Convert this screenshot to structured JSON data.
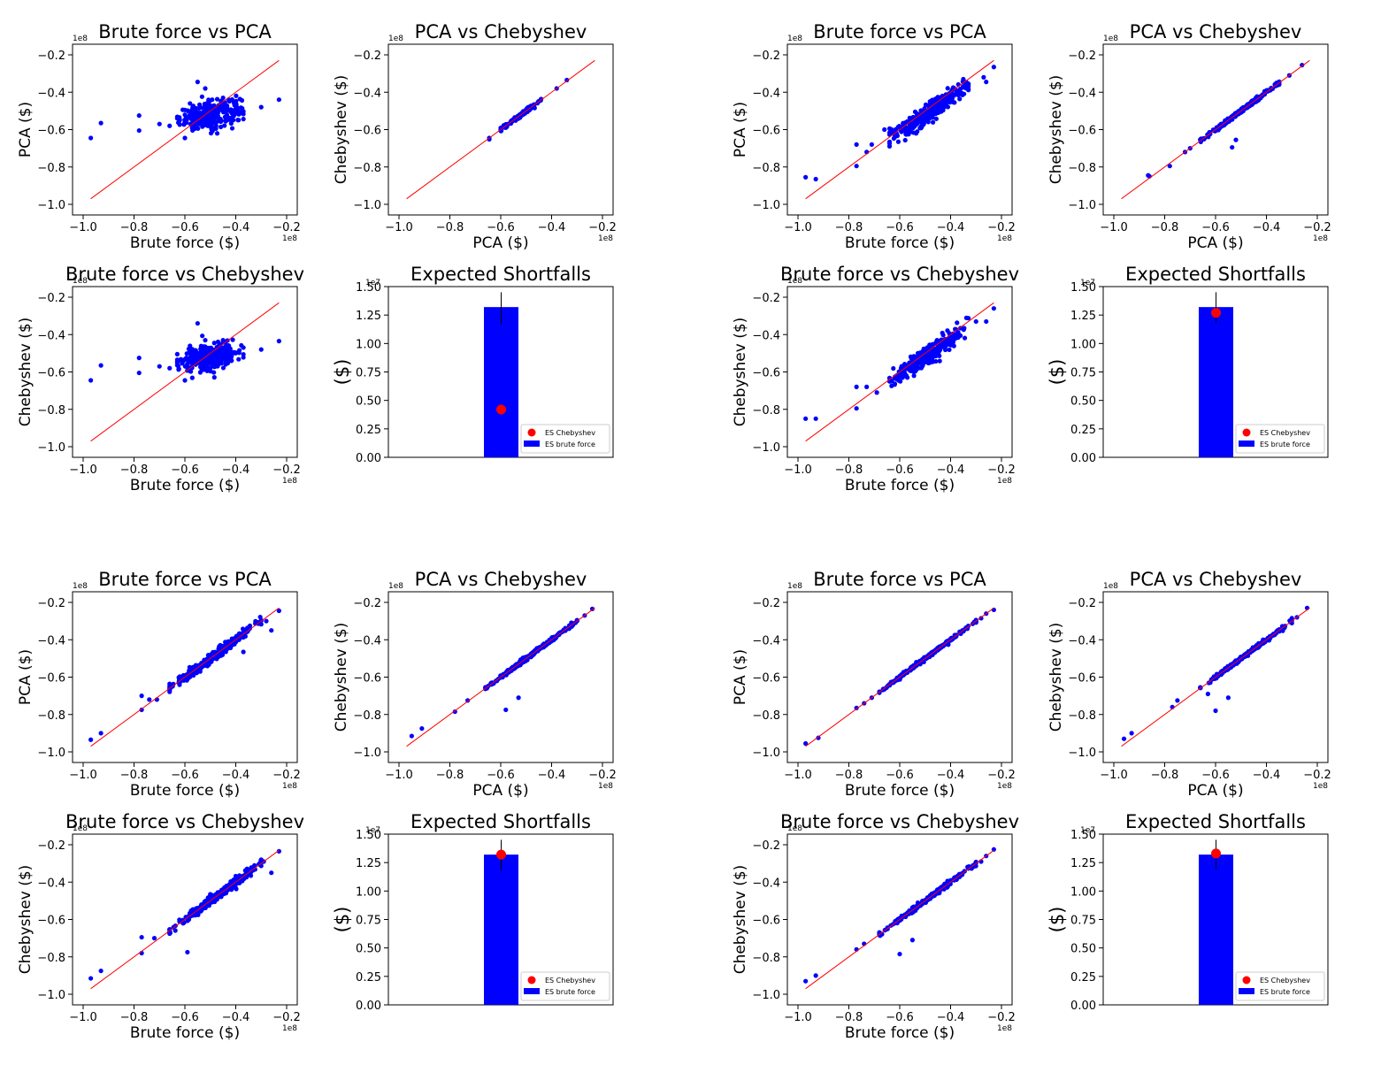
{
  "colors": {
    "point": "#0000ff",
    "line": "#ff0000",
    "bar": "#0000ff",
    "marker": "#ff0000",
    "axis": "#000000"
  },
  "chart_data": [
    {
      "id": "g1",
      "type": "scatter",
      "title": "Brute force vs PCA",
      "xlabel": "Brute force ($)",
      "ylabel": "PCA ($)",
      "xlim": [
        -1.0,
        -0.2
      ],
      "ylim": [
        -1.0,
        -0.2
      ],
      "xticks": [
        "−1.0",
        "−0.8",
        "−0.6",
        "−0.4",
        "−0.2"
      ],
      "yticks": [
        "−1.0",
        "−0.8",
        "−0.6",
        "−0.4",
        "−0.2"
      ],
      "x_offset": "1e8",
      "y_offset": "1e8",
      "diagonal": [
        [
          -0.97,
          -0.97
        ],
        [
          -0.23,
          -0.23
        ]
      ],
      "cloud": {
        "slope": 0.25,
        "spread": 0.035,
        "n": 300,
        "xmin": -0.63,
        "xmax": -0.37
      },
      "points": [
        [
          -0.97,
          -0.645
        ],
        [
          -0.93,
          -0.565
        ],
        [
          -0.78,
          -0.605
        ],
        [
          -0.78,
          -0.525
        ],
        [
          -0.6,
          -0.645
        ],
        [
          -0.55,
          -0.345
        ],
        [
          -0.58,
          -0.46
        ],
        [
          -0.52,
          -0.38
        ],
        [
          -0.45,
          -0.43
        ],
        [
          -0.23,
          -0.44
        ],
        [
          -0.3,
          -0.48
        ],
        [
          -0.7,
          -0.57
        ],
        [
          -0.66,
          -0.58
        ]
      ]
    },
    {
      "id": "g2",
      "type": "scatter",
      "title": "PCA vs Chebyshev",
      "xlabel": "PCA ($)",
      "ylabel": "Chebyshev ($)",
      "xlim": [
        -1.0,
        -0.2
      ],
      "ylim": [
        -1.0,
        -0.2
      ],
      "xticks": [
        "−1.0",
        "−0.8",
        "−0.6",
        "−0.4",
        "−0.2"
      ],
      "yticks": [
        "−1.0",
        "−0.8",
        "−0.6",
        "−0.4",
        "−0.2"
      ],
      "x_offset": "1e8",
      "y_offset": "1e8",
      "diagonal": [
        [
          -0.97,
          -0.97
        ],
        [
          -0.23,
          -0.23
        ]
      ],
      "cloud": {
        "slope": 1.0,
        "spread": 0.005,
        "n": 150,
        "xmin": -0.6,
        "xmax": -0.43
      },
      "points": [
        [
          -0.645,
          -0.645
        ],
        [
          -0.645,
          -0.652
        ],
        [
          -0.34,
          -0.335
        ],
        [
          -0.38,
          -0.38
        ],
        [
          -0.6,
          -0.6
        ]
      ]
    },
    {
      "id": "g3",
      "type": "scatter",
      "title": "Brute force vs Chebyshev",
      "xlabel": "Brute force ($)",
      "ylabel": "Chebyshev ($)",
      "xlim": [
        -1.0,
        -0.2
      ],
      "ylim": [
        -1.0,
        -0.2
      ],
      "xticks": [
        "−1.0",
        "−0.8",
        "−0.6",
        "−0.4",
        "−0.2"
      ],
      "yticks": [
        "−1.0",
        "−0.8",
        "−0.6",
        "−0.4",
        "−0.2"
      ],
      "x_offset": "1e8",
      "y_offset": "1e8",
      "diagonal": [
        [
          -0.97,
          -0.97
        ],
        [
          -0.23,
          -0.23
        ]
      ],
      "cloud": {
        "slope": 0.25,
        "spread": 0.035,
        "n": 300,
        "xmin": -0.63,
        "xmax": -0.37
      },
      "points": [
        [
          -0.97,
          -0.645
        ],
        [
          -0.93,
          -0.565
        ],
        [
          -0.78,
          -0.605
        ],
        [
          -0.78,
          -0.525
        ],
        [
          -0.6,
          -0.645
        ],
        [
          -0.55,
          -0.34
        ],
        [
          -0.58,
          -0.46
        ],
        [
          -0.52,
          -0.43
        ],
        [
          -0.45,
          -0.43
        ],
        [
          -0.23,
          -0.435
        ],
        [
          -0.3,
          -0.48
        ],
        [
          -0.7,
          -0.57
        ],
        [
          -0.66,
          -0.58
        ]
      ]
    },
    {
      "id": "g4",
      "type": "bar",
      "title": "Expected Shortfalls",
      "ylabel": "($)",
      "ylim": [
        0,
        1.5
      ],
      "y_offset": "1e7",
      "yticks": [
        "0.00",
        "0.25",
        "0.50",
        "0.75",
        "1.00",
        "1.25",
        "1.50"
      ],
      "bar_value": 1.32,
      "bar_error": [
        1.17,
        1.45
      ],
      "marker_value": 0.42,
      "legend": [
        "ES Chebyshev",
        "ES brute force"
      ]
    },
    {
      "id": "g5",
      "type": "scatter",
      "title": "Brute force vs PCA",
      "xlabel": "Brute force ($)",
      "ylabel": "PCA ($)",
      "xlim": [
        -1.0,
        -0.2
      ],
      "ylim": [
        -1.0,
        -0.2
      ],
      "xticks": [
        "−1.0",
        "−0.8",
        "−0.6",
        "−0.4",
        "−0.2"
      ],
      "yticks": [
        "−1.0",
        "−0.8",
        "−0.6",
        "−0.4",
        "−0.2"
      ],
      "x_offset": "1e8",
      "y_offset": "1e8",
      "diagonal": [
        [
          -0.97,
          -0.97
        ],
        [
          -0.23,
          -0.23
        ]
      ],
      "cloud": {
        "slope": 0.95,
        "spread": 0.025,
        "n": 320,
        "xmin": -0.64,
        "xmax": -0.33
      },
      "points": [
        [
          -0.97,
          -0.855
        ],
        [
          -0.93,
          -0.865
        ],
        [
          -0.77,
          -0.795
        ],
        [
          -0.77,
          -0.68
        ],
        [
          -0.73,
          -0.72
        ],
        [
          -0.71,
          -0.68
        ],
        [
          -0.26,
          -0.345
        ],
        [
          -0.23,
          -0.265
        ],
        [
          -0.27,
          -0.32
        ],
        [
          -0.35,
          -0.33
        ],
        [
          -0.66,
          -0.6
        ],
        [
          -0.57,
          -0.62
        ]
      ]
    },
    {
      "id": "g6",
      "type": "scatter",
      "title": "PCA vs Chebyshev",
      "xlabel": "PCA ($)",
      "ylabel": "Chebyshev ($)",
      "xlim": [
        -1.0,
        -0.2
      ],
      "ylim": [
        -1.0,
        -0.2
      ],
      "xticks": [
        "−1.0",
        "−0.8",
        "−0.6",
        "−0.4",
        "−0.2"
      ],
      "yticks": [
        "−1.0",
        "−0.8",
        "−0.6",
        "−0.4",
        "−0.2"
      ],
      "x_offset": "1e8",
      "y_offset": "1e8",
      "diagonal": [
        [
          -0.97,
          -0.97
        ],
        [
          -0.23,
          -0.23
        ]
      ],
      "cloud": {
        "slope": 1.0,
        "spread": 0.006,
        "n": 250,
        "xmin": -0.66,
        "xmax": -0.35
      },
      "points": [
        [
          -0.865,
          -0.845
        ],
        [
          -0.86,
          -0.85
        ],
        [
          -0.78,
          -0.795
        ],
        [
          -0.52,
          -0.655
        ],
        [
          -0.535,
          -0.695
        ],
        [
          -0.26,
          -0.255
        ],
        [
          -0.31,
          -0.31
        ],
        [
          -0.72,
          -0.72
        ],
        [
          -0.7,
          -0.7
        ]
      ]
    },
    {
      "id": "g7",
      "type": "scatter",
      "title": "Brute force vs Chebyshev",
      "xlabel": "Brute force ($)",
      "ylabel": "Chebyshev ($)",
      "xlim": [
        -1.0,
        -0.2
      ],
      "ylim": [
        -1.0,
        -0.2
      ],
      "xticks": [
        "−1.0",
        "−0.8",
        "−0.6",
        "−0.4",
        "−0.2"
      ],
      "yticks": [
        "−1.0",
        "−0.8",
        "−0.6",
        "−0.4",
        "−0.2"
      ],
      "x_offset": "1e8",
      "y_offset": "1e8",
      "diagonal": [
        [
          -0.97,
          -0.97
        ],
        [
          -0.23,
          -0.23
        ]
      ],
      "cloud": {
        "slope": 0.95,
        "spread": 0.025,
        "n": 320,
        "xmin": -0.64,
        "xmax": -0.33
      },
      "points": [
        [
          -0.97,
          -0.85
        ],
        [
          -0.93,
          -0.85
        ],
        [
          -0.77,
          -0.795
        ],
        [
          -0.77,
          -0.68
        ],
        [
          -0.73,
          -0.68
        ],
        [
          -0.69,
          -0.71
        ],
        [
          -0.23,
          -0.26
        ],
        [
          -0.26,
          -0.33
        ],
        [
          -0.3,
          -0.33
        ],
        [
          -0.57,
          -0.63
        ]
      ]
    },
    {
      "id": "g8",
      "type": "bar",
      "title": "Expected Shortfalls",
      "ylabel": "($)",
      "ylim": [
        0,
        1.5
      ],
      "y_offset": "1e7",
      "yticks": [
        "0.00",
        "0.25",
        "0.50",
        "0.75",
        "1.00",
        "1.25",
        "1.50"
      ],
      "bar_value": 1.32,
      "bar_error": [
        1.18,
        1.45
      ],
      "marker_value": 1.27,
      "legend": [
        "ES Chebyshev",
        "ES brute force"
      ]
    },
    {
      "id": "g9",
      "type": "scatter",
      "title": "Brute force vs PCA",
      "xlabel": "Brute force ($)",
      "ylabel": "PCA ($)",
      "xlim": [
        -1.0,
        -0.2
      ],
      "ylim": [
        -1.0,
        -0.2
      ],
      "xticks": [
        "−1.0",
        "−0.8",
        "−0.6",
        "−0.4",
        "−0.2"
      ],
      "yticks": [
        "−1.0",
        "−0.8",
        "−0.6",
        "−0.4",
        "−0.2"
      ],
      "x_offset": "1e8",
      "y_offset": "1e8",
      "diagonal": [
        [
          -0.97,
          -0.97
        ],
        [
          -0.23,
          -0.23
        ]
      ],
      "cloud": {
        "slope": 1.0,
        "spread": 0.012,
        "n": 300,
        "xmin": -0.66,
        "xmax": -0.3
      },
      "points": [
        [
          -0.97,
          -0.935
        ],
        [
          -0.93,
          -0.9
        ],
        [
          -0.77,
          -0.775
        ],
        [
          -0.77,
          -0.7
        ],
        [
          -0.74,
          -0.72
        ],
        [
          -0.71,
          -0.72
        ],
        [
          -0.23,
          -0.245
        ],
        [
          -0.26,
          -0.35
        ],
        [
          -0.28,
          -0.3
        ],
        [
          -0.37,
          -0.465
        ]
      ]
    },
    {
      "id": "g10",
      "type": "scatter",
      "title": "PCA vs Chebyshev",
      "xlabel": "PCA ($)",
      "ylabel": "Chebyshev ($)",
      "xlim": [
        -1.0,
        -0.2
      ],
      "ylim": [
        -1.0,
        -0.2
      ],
      "xticks": [
        "−1.0",
        "−0.8",
        "−0.6",
        "−0.4",
        "−0.2"
      ],
      "yticks": [
        "−1.0",
        "−0.8",
        "−0.6",
        "−0.4",
        "−0.2"
      ],
      "x_offset": "1e8",
      "y_offset": "1e8",
      "diagonal": [
        [
          -0.97,
          -0.97
        ],
        [
          -0.23,
          -0.23
        ]
      ],
      "cloud": {
        "slope": 1.0,
        "spread": 0.005,
        "n": 280,
        "xmin": -0.66,
        "xmax": -0.3
      },
      "points": [
        [
          -0.95,
          -0.915
        ],
        [
          -0.91,
          -0.875
        ],
        [
          -0.78,
          -0.785
        ],
        [
          -0.73,
          -0.725
        ],
        [
          -0.58,
          -0.775
        ],
        [
          -0.53,
          -0.71
        ],
        [
          -0.24,
          -0.235
        ],
        [
          -0.27,
          -0.27
        ]
      ]
    },
    {
      "id": "g11",
      "type": "scatter",
      "title": "Brute force vs Chebyshev",
      "xlabel": "Brute force ($)",
      "ylabel": "Chebyshev ($)",
      "xlim": [
        -1.0,
        -0.2
      ],
      "ylim": [
        -1.0,
        -0.2
      ],
      "xticks": [
        "−1.0",
        "−0.8",
        "−0.6",
        "−0.4",
        "−0.2"
      ],
      "yticks": [
        "−1.0",
        "−0.8",
        "−0.6",
        "−0.4",
        "−0.2"
      ],
      "x_offset": "1e8",
      "y_offset": "1e8",
      "diagonal": [
        [
          -0.97,
          -0.97
        ],
        [
          -0.23,
          -0.23
        ]
      ],
      "cloud": {
        "slope": 1.0,
        "spread": 0.012,
        "n": 300,
        "xmin": -0.66,
        "xmax": -0.3
      },
      "points": [
        [
          -0.97,
          -0.915
        ],
        [
          -0.93,
          -0.875
        ],
        [
          -0.77,
          -0.78
        ],
        [
          -0.77,
          -0.695
        ],
        [
          -0.72,
          -0.7
        ],
        [
          -0.59,
          -0.775
        ],
        [
          -0.23,
          -0.235
        ],
        [
          -0.26,
          -0.35
        ],
        [
          -0.29,
          -0.29
        ],
        [
          -0.47,
          -0.46
        ],
        [
          -0.52,
          -0.52
        ]
      ]
    },
    {
      "id": "g12",
      "type": "bar",
      "title": "Expected Shortfalls",
      "ylabel": "($)",
      "ylim": [
        0,
        1.5
      ],
      "y_offset": "1e7",
      "yticks": [
        "0.00",
        "0.25",
        "0.50",
        "0.75",
        "1.00",
        "1.25",
        "1.50"
      ],
      "bar_value": 1.32,
      "bar_error": [
        1.18,
        1.45
      ],
      "marker_value": 1.32,
      "legend": [
        "ES Chebyshev",
        "ES brute force"
      ]
    },
    {
      "id": "g13",
      "type": "scatter",
      "title": "Brute force vs PCA",
      "xlabel": "Brute force ($)",
      "ylabel": "PCA ($)",
      "xlim": [
        -1.0,
        -0.2
      ],
      "ylim": [
        -1.0,
        -0.2
      ],
      "xticks": [
        "−1.0",
        "−0.8",
        "−0.6",
        "−0.4",
        "−0.2"
      ],
      "yticks": [
        "−1.0",
        "−0.8",
        "−0.6",
        "−0.4",
        "−0.2"
      ],
      "x_offset": "1e8",
      "y_offset": "1e8",
      "diagonal": [
        [
          -0.97,
          -0.97
        ],
        [
          -0.23,
          -0.23
        ]
      ],
      "cloud": {
        "slope": 1.0,
        "spread": 0.004,
        "n": 300,
        "xmin": -0.68,
        "xmax": -0.3
      },
      "points": [
        [
          -0.97,
          -0.955
        ],
        [
          -0.92,
          -0.925
        ],
        [
          -0.77,
          -0.765
        ],
        [
          -0.74,
          -0.74
        ],
        [
          -0.71,
          -0.71
        ],
        [
          -0.23,
          -0.24
        ],
        [
          -0.28,
          -0.285
        ],
        [
          -0.26,
          -0.26
        ]
      ]
    },
    {
      "id": "g14",
      "type": "scatter",
      "title": "PCA vs Chebyshev",
      "xlabel": "PCA ($)",
      "ylabel": "Chebyshev ($)",
      "xlim": [
        -1.0,
        -0.2
      ],
      "ylim": [
        -1.0,
        -0.2
      ],
      "xticks": [
        "−1.0",
        "−0.8",
        "−0.6",
        "−0.4",
        "−0.2"
      ],
      "yticks": [
        "−1.0",
        "−0.8",
        "−0.6",
        "−0.4",
        "−0.2"
      ],
      "x_offset": "1e8",
      "y_offset": "1e8",
      "diagonal": [
        [
          -0.97,
          -0.97
        ],
        [
          -0.23,
          -0.23
        ]
      ],
      "cloud": {
        "slope": 1.0,
        "spread": 0.005,
        "n": 280,
        "xmin": -0.66,
        "xmax": -0.3
      },
      "points": [
        [
          -0.96,
          -0.93
        ],
        [
          -0.93,
          -0.9
        ],
        [
          -0.77,
          -0.76
        ],
        [
          -0.75,
          -0.725
        ],
        [
          -0.6,
          -0.78
        ],
        [
          -0.55,
          -0.71
        ],
        [
          -0.63,
          -0.69
        ],
        [
          -0.24,
          -0.23
        ],
        [
          -0.28,
          -0.28
        ]
      ]
    },
    {
      "id": "g15",
      "type": "scatter",
      "title": "Brute force vs Chebyshev",
      "xlabel": "Brute force ($)",
      "ylabel": "Chebyshev ($)",
      "xlim": [
        -1.0,
        -0.2
      ],
      "ylim": [
        -1.0,
        -0.2
      ],
      "xticks": [
        "−1.0",
        "−0.8",
        "−0.6",
        "−0.4",
        "−0.2"
      ],
      "yticks": [
        "−1.0",
        "−0.8",
        "−0.6",
        "−0.4",
        "−0.2"
      ],
      "x_offset": "1e8",
      "y_offset": "1e8",
      "diagonal": [
        [
          -0.97,
          -0.97
        ],
        [
          -0.23,
          -0.23
        ]
      ],
      "cloud": {
        "slope": 1.0,
        "spread": 0.006,
        "n": 300,
        "xmin": -0.68,
        "xmax": -0.3
      },
      "points": [
        [
          -0.97,
          -0.93
        ],
        [
          -0.93,
          -0.9
        ],
        [
          -0.77,
          -0.76
        ],
        [
          -0.74,
          -0.73
        ],
        [
          -0.6,
          -0.785
        ],
        [
          -0.55,
          -0.71
        ],
        [
          -0.23,
          -0.225
        ],
        [
          -0.28,
          -0.29
        ],
        [
          -0.26,
          -0.26
        ]
      ]
    },
    {
      "id": "g16",
      "type": "bar",
      "title": "Expected Shortfalls",
      "ylabel": "($)",
      "ylim": [
        0,
        1.5
      ],
      "y_offset": "1e7",
      "yticks": [
        "0.00",
        "0.25",
        "0.50",
        "0.75",
        "1.00",
        "1.25",
        "1.50"
      ],
      "bar_value": 1.32,
      "bar_error": [
        1.19,
        1.45
      ],
      "marker_value": 1.33,
      "legend": [
        "ES Chebyshev",
        "ES brute force"
      ]
    }
  ]
}
